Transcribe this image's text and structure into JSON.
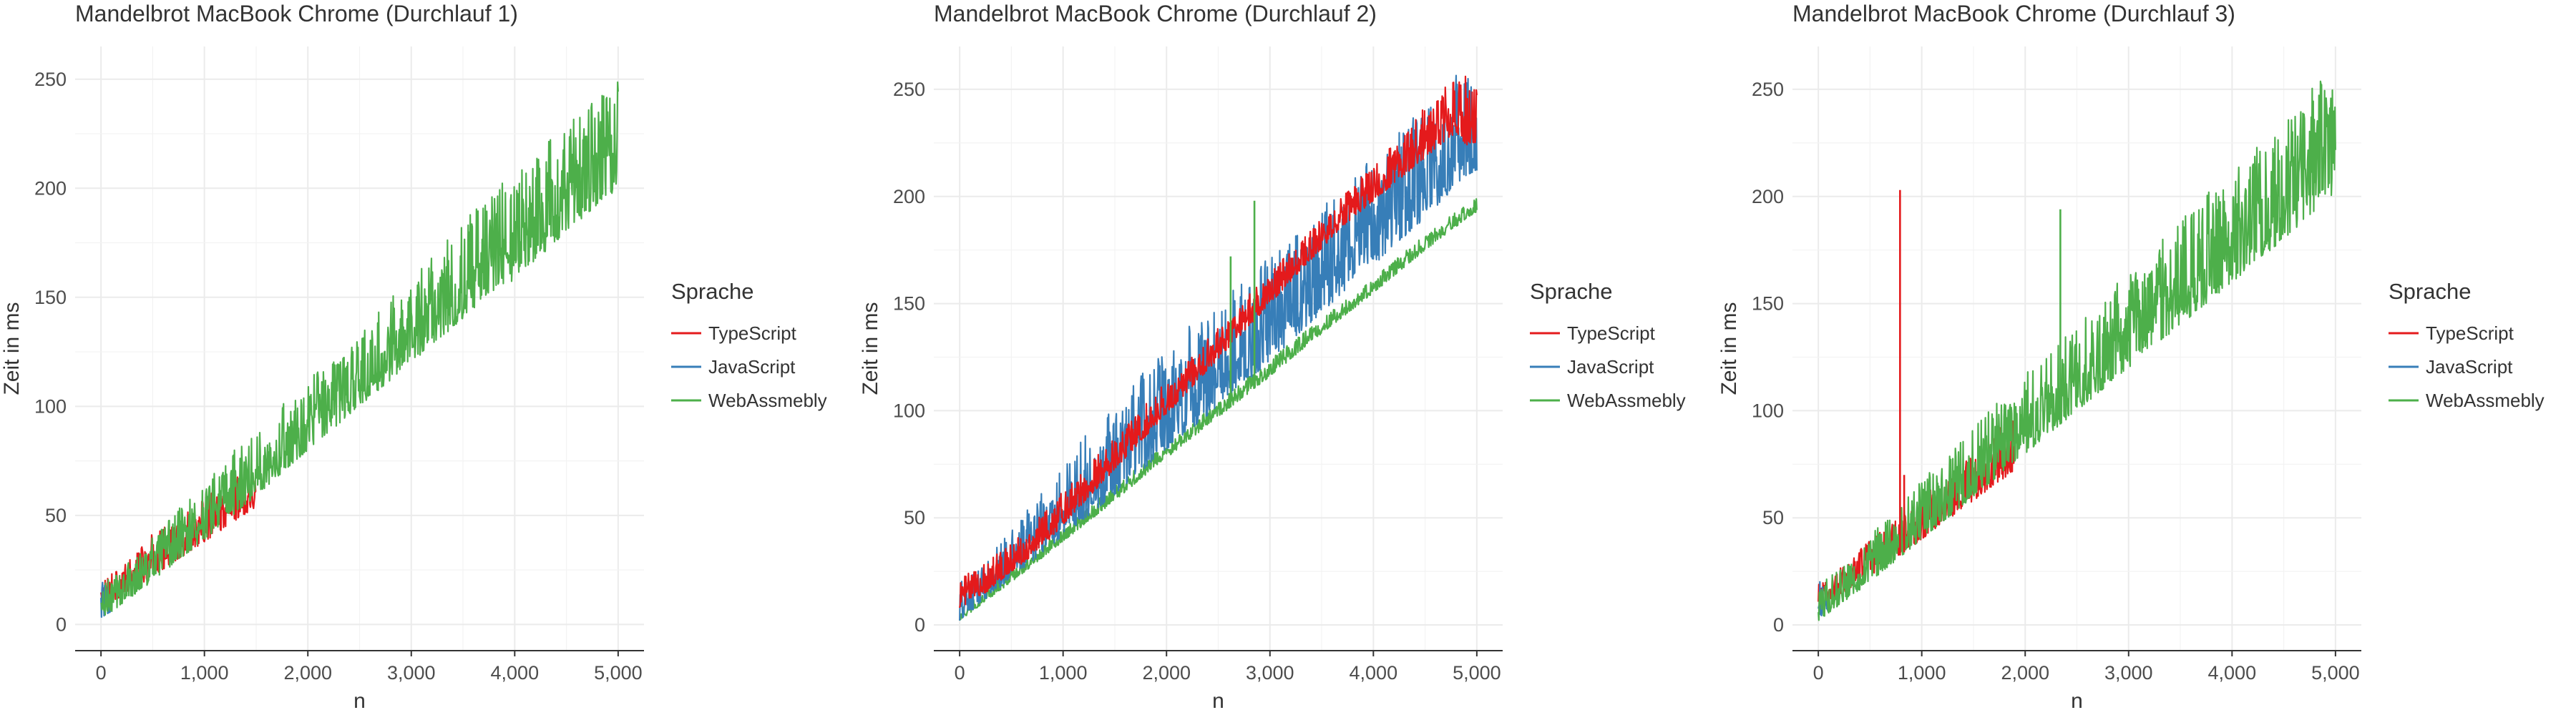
{
  "chart_data": [
    {
      "type": "line",
      "title": "Mandelbrot MacBook Chrome (Durchlauf 1)",
      "xlabel": "n",
      "ylabel": "Zeit in ms",
      "xlim": [
        -250,
        5250
      ],
      "ylim": [
        -12,
        265
      ],
      "x_ticks": [
        0,
        1000,
        2000,
        3000,
        4000,
        5000
      ],
      "x_tick_labels": [
        "0",
        "1,000",
        "2,000",
        "3,000",
        "4,000",
        "5,000"
      ],
      "y_ticks": [
        0,
        50,
        100,
        150,
        200,
        250
      ],
      "y_tick_labels": [
        "0",
        "50",
        "100",
        "150",
        "200",
        "250"
      ],
      "grid": true,
      "legend_title": "Sprache",
      "legend_position": "right",
      "series": [
        {
          "name": "TypeScript",
          "color": "#e41a1c",
          "x": [
            0,
            250,
            500,
            750,
            1000,
            1250,
            1500
          ],
          "lower": [
            8,
            14,
            22,
            30,
            38,
            46,
            54
          ],
          "upper": [
            22,
            28,
            42,
            48,
            58,
            67,
            75
          ]
        },
        {
          "name": "JavaScript",
          "color": "#377eb8",
          "x": [
            0,
            100
          ],
          "lower": [
            3,
            6
          ],
          "upper": [
            22,
            14
          ]
        },
        {
          "name": "WebAssmebly",
          "color": "#4daf4a",
          "x": [
            0,
            500,
            1000,
            1500,
            2000,
            2500,
            3000,
            3500,
            3750,
            4000,
            4500,
            5000
          ],
          "lower": [
            2,
            20,
            39,
            59,
            80,
            100,
            120,
            140,
            152,
            158,
            180,
            200
          ],
          "upper": [
            18,
            40,
            66,
            90,
            112,
            135,
            160,
            185,
            200,
            205,
            230,
            255
          ]
        }
      ]
    },
    {
      "type": "line",
      "title": "Mandelbrot MacBook Chrome (Durchlauf 2)",
      "xlabel": "n",
      "ylabel": "Zeit in ms",
      "xlim": [
        -250,
        5250
      ],
      "ylim": [
        -12,
        270
      ],
      "x_ticks": [
        0,
        1000,
        2000,
        3000,
        4000,
        5000
      ],
      "x_tick_labels": [
        "0",
        "1,000",
        "2,000",
        "3,000",
        "4,000",
        "5,000"
      ],
      "y_ticks": [
        0,
        50,
        100,
        150,
        200,
        250
      ],
      "y_tick_labels": [
        "0",
        "50",
        "100",
        "150",
        "200",
        "250"
      ],
      "grid": true,
      "legend_title": "Sprache",
      "legend_position": "right",
      "series": [
        {
          "name": "TypeScript",
          "color": "#e41a1c",
          "x": [
            0,
            250,
            500,
            750,
            3700,
            3800,
            4800,
            4900,
            5000
          ],
          "lower": [
            8,
            15,
            25,
            34,
            186,
            190,
            230,
            224,
            225
          ],
          "upper": [
            22,
            30,
            38,
            50,
            200,
            205,
            258,
            256,
            255
          ]
        },
        {
          "name": "JavaScript",
          "color": "#377eb8",
          "x": [
            0,
            500,
            1000,
            1500,
            2000,
            2500,
            3000,
            3500,
            4000,
            4500,
            4900,
            5000
          ],
          "lower": [
            2,
            22,
            41,
            61,
            82,
            102,
            123,
            146,
            168,
            190,
            210,
            212
          ],
          "upper": [
            20,
            44,
            76,
            105,
            130,
            152,
            172,
            195,
            222,
            245,
            265,
            240
          ]
        },
        {
          "name": "WebAssmebly",
          "color": "#4daf4a",
          "x": [
            0,
            500,
            1000,
            1500,
            2000,
            2500,
            3000,
            3500,
            4000,
            4500,
            5000
          ],
          "lower": [
            2,
            20,
            39,
            58,
            78,
            97,
            116,
            136,
            155,
            175,
            193
          ],
          "upper": [
            8,
            26,
            45,
            65,
            85,
            104,
            124,
            143,
            162,
            182,
            200
          ]
        }
      ],
      "spikes": [
        {
          "series": "WebAssmebly",
          "x": 2620,
          "y": 172
        },
        {
          "series": "WebAssmebly",
          "x": 2850,
          "y": 198
        }
      ]
    },
    {
      "type": "line",
      "title": "Mandelbrot MacBook Chrome (Durchlauf 3)",
      "xlabel": "n",
      "ylabel": "Zeit in ms",
      "xlim": [
        -250,
        5250
      ],
      "ylim": [
        -12,
        270
      ],
      "x_ticks": [
        0,
        1000,
        2000,
        3000,
        4000,
        5000
      ],
      "x_tick_labels": [
        "0",
        "1,000",
        "2,000",
        "3,000",
        "4,000",
        "5,000"
      ],
      "y_ticks": [
        0,
        50,
        100,
        150,
        200,
        250
      ],
      "y_tick_labels": [
        "0",
        "50",
        "100",
        "150",
        "200",
        "250"
      ],
      "grid": true,
      "legend_title": "Sprache",
      "legend_position": "right",
      "series": [
        {
          "name": "TypeScript",
          "color": "#e41a1c",
          "x": [
            0,
            250,
            500,
            750,
            1000,
            1250,
            1500,
            1750,
            1900
          ],
          "lower": [
            8,
            15,
            23,
            31,
            40,
            49,
            58,
            67,
            72
          ],
          "upper": [
            20,
            28,
            40,
            50,
            60,
            70,
            80,
            92,
            98
          ]
        },
        {
          "name": "JavaScript",
          "color": "#377eb8",
          "x": [
            0,
            100
          ],
          "lower": [
            3,
            6
          ],
          "upper": [
            22,
            14
          ]
        },
        {
          "name": "WebAssmebly",
          "color": "#4daf4a",
          "x": [
            0,
            500,
            1000,
            1500,
            2000,
            2500,
            3000,
            3500,
            4000,
            4500,
            4900,
            5000
          ],
          "lower": [
            2,
            20,
            40,
            60,
            80,
            100,
            120,
            140,
            160,
            180,
            198,
            200
          ],
          "upper": [
            18,
            42,
            68,
            92,
            118,
            140,
            165,
            190,
            212,
            235,
            258,
            250
          ]
        }
      ],
      "spikes": [
        {
          "series": "TypeScript",
          "x": 790,
          "y": 203
        },
        {
          "series": "TypeScript",
          "x": 830,
          "y": 70
        },
        {
          "series": "WebAssmebly",
          "x": 2340,
          "y": 194
        }
      ]
    }
  ]
}
